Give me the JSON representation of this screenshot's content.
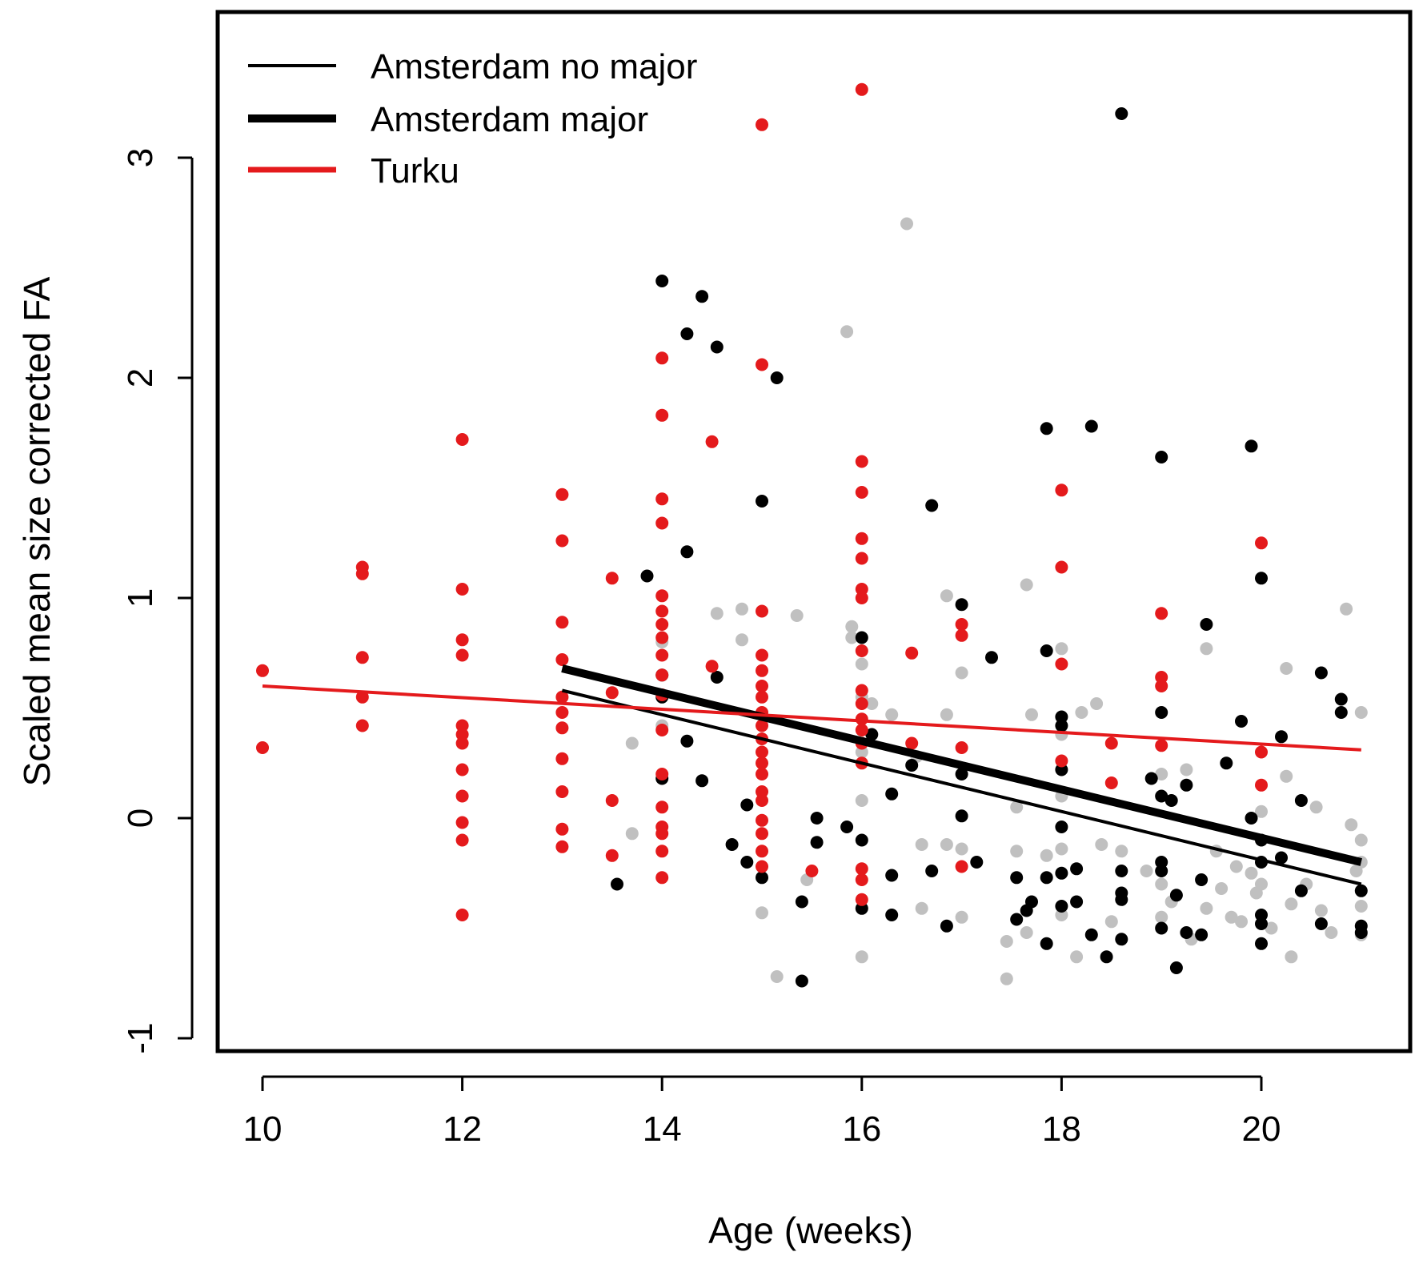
{
  "chart_data": {
    "type": "scatter",
    "title": "",
    "xlabel": "Age (weeks)",
    "ylabel": "Scaled mean size corrected FA",
    "xlim": [
      9.5,
      21.5
    ],
    "ylim": [
      -1.2,
      3.7
    ],
    "x_ticks": [
      "10",
      "12",
      "14",
      "16",
      "18",
      "20"
    ],
    "y_ticks": [
      "-1",
      "0",
      "1",
      "2",
      "3"
    ],
    "grid": false,
    "legend_position": "top-left",
    "legend": [
      {
        "label": "Amsterdam no major",
        "color": "#000000",
        "style": "thin"
      },
      {
        "label": "Amsterdam major",
        "color": "#000000",
        "style": "thick"
      },
      {
        "label": "Turku",
        "color": "#e41a1c",
        "style": "medium"
      }
    ],
    "colors": {
      "amsterdam": "#000000",
      "turku": "#e41a1c",
      "grey_points": "#c0c0c0"
    },
    "fit_lines": [
      {
        "legend_index": 0,
        "x": [
          13,
          21
        ],
        "y": [
          0.58,
          -0.3
        ]
      },
      {
        "legend_index": 1,
        "x": [
          13,
          21
        ],
        "y": [
          0.68,
          -0.2
        ]
      },
      {
        "legend_index": 2,
        "x": [
          10,
          21
        ],
        "y": [
          0.6,
          0.31
        ]
      }
    ],
    "series": [
      {
        "group": "turku",
        "points": [
          [
            10,
            0.67
          ],
          [
            10,
            0.32
          ],
          [
            11,
            1.14
          ],
          [
            11,
            1.11
          ],
          [
            11,
            0.73
          ],
          [
            11,
            0.55
          ],
          [
            11,
            0.42
          ],
          [
            12,
            1.72
          ],
          [
            12,
            1.04
          ],
          [
            12,
            0.81
          ],
          [
            12,
            0.74
          ],
          [
            12,
            0.42
          ],
          [
            12,
            0.38
          ],
          [
            12,
            0.34
          ],
          [
            12,
            0.22
          ],
          [
            12,
            0.1
          ],
          [
            12,
            -0.02
          ],
          [
            12,
            -0.1
          ],
          [
            12,
            -0.44
          ],
          [
            13,
            1.47
          ],
          [
            13,
            1.26
          ],
          [
            13,
            0.89
          ],
          [
            13,
            0.72
          ],
          [
            13,
            0.55
          ],
          [
            13,
            0.48
          ],
          [
            13,
            0.41
          ],
          [
            13,
            0.27
          ],
          [
            13,
            0.12
          ],
          [
            13,
            -0.05
          ],
          [
            13,
            -0.13
          ],
          [
            13.5,
            1.09
          ],
          [
            13.5,
            0.57
          ],
          [
            13.5,
            0.08
          ],
          [
            13.5,
            -0.17
          ],
          [
            14,
            2.09
          ],
          [
            14,
            1.83
          ],
          [
            14,
            1.45
          ],
          [
            14,
            1.34
          ],
          [
            14,
            1.01
          ],
          [
            14,
            0.94
          ],
          [
            14,
            0.88
          ],
          [
            14,
            0.82
          ],
          [
            14,
            0.74
          ],
          [
            14,
            0.65
          ],
          [
            14,
            0.56
          ],
          [
            14,
            0.4
          ],
          [
            14,
            0.2
          ],
          [
            14,
            0.05
          ],
          [
            14,
            -0.04
          ],
          [
            14,
            -0.07
          ],
          [
            14,
            -0.15
          ],
          [
            14,
            -0.27
          ],
          [
            14.5,
            1.71
          ],
          [
            14.5,
            0.69
          ],
          [
            15,
            3.15
          ],
          [
            15,
            2.06
          ],
          [
            15,
            0.94
          ],
          [
            15,
            0.74
          ],
          [
            15,
            0.67
          ],
          [
            15,
            0.6
          ],
          [
            15,
            0.55
          ],
          [
            15,
            0.48
          ],
          [
            15,
            0.42
          ],
          [
            15,
            0.36
          ],
          [
            15,
            0.3
          ],
          [
            15,
            0.25
          ],
          [
            15,
            0.2
          ],
          [
            15,
            0.12
          ],
          [
            15,
            0.08
          ],
          [
            15,
            -0.01
          ],
          [
            15,
            -0.07
          ],
          [
            15,
            -0.15
          ],
          [
            15,
            -0.22
          ],
          [
            15.5,
            -0.24
          ],
          [
            16,
            3.31
          ],
          [
            16,
            1.62
          ],
          [
            16,
            1.48
          ],
          [
            16,
            1.27
          ],
          [
            16,
            1.18
          ],
          [
            16,
            1.04
          ],
          [
            16,
            1.0
          ],
          [
            16,
            0.76
          ],
          [
            16,
            0.58
          ],
          [
            16,
            0.52
          ],
          [
            16,
            0.45
          ],
          [
            16,
            0.4
          ],
          [
            16,
            0.34
          ],
          [
            16,
            0.25
          ],
          [
            16,
            -0.23
          ],
          [
            16,
            -0.28
          ],
          [
            16,
            -0.37
          ],
          [
            16.5,
            0.75
          ],
          [
            16.5,
            0.34
          ],
          [
            17,
            0.88
          ],
          [
            17,
            0.83
          ],
          [
            17,
            0.32
          ],
          [
            17,
            -0.22
          ],
          [
            18,
            1.49
          ],
          [
            18,
            1.14
          ],
          [
            18,
            0.7
          ],
          [
            18,
            0.26
          ],
          [
            18.5,
            0.34
          ],
          [
            18.5,
            0.16
          ],
          [
            19,
            0.93
          ],
          [
            19,
            0.64
          ],
          [
            19,
            0.6
          ],
          [
            19,
            0.33
          ],
          [
            20,
            1.25
          ],
          [
            20,
            0.3
          ],
          [
            20,
            0.15
          ]
        ]
      },
      {
        "group": "amsterdam",
        "points": [
          [
            13.55,
            -0.3
          ],
          [
            13.85,
            1.1
          ],
          [
            14,
            2.44
          ],
          [
            14,
            0.65
          ],
          [
            14,
            0.55
          ],
          [
            14,
            0.18
          ],
          [
            14.25,
            2.2
          ],
          [
            14.25,
            1.21
          ],
          [
            14.25,
            0.35
          ],
          [
            14.4,
            2.37
          ],
          [
            14.4,
            0.17
          ],
          [
            14.55,
            2.14
          ],
          [
            14.55,
            0.64
          ],
          [
            14.7,
            -0.12
          ],
          [
            14.85,
            0.06
          ],
          [
            14.85,
            -0.2
          ],
          [
            15,
            1.44
          ],
          [
            15,
            -0.27
          ],
          [
            15.15,
            2.0
          ],
          [
            15.4,
            -0.38
          ],
          [
            15.4,
            -0.74
          ],
          [
            15.55,
            -0.11
          ],
          [
            15.55,
            0.0
          ],
          [
            15.85,
            -0.04
          ],
          [
            16,
            0.82
          ],
          [
            16,
            -0.1
          ],
          [
            16,
            -0.41
          ],
          [
            16.1,
            0.38
          ],
          [
            16.3,
            0.11
          ],
          [
            16.3,
            -0.26
          ],
          [
            16.3,
            -0.44
          ],
          [
            16.5,
            0.24
          ],
          [
            16.7,
            1.42
          ],
          [
            16.7,
            -0.24
          ],
          [
            16.85,
            -0.49
          ],
          [
            17,
            0.97
          ],
          [
            17,
            0.2
          ],
          [
            17,
            0.01
          ],
          [
            17.15,
            -0.2
          ],
          [
            17.3,
            0.73
          ],
          [
            17.55,
            -0.27
          ],
          [
            17.55,
            -0.46
          ],
          [
            17.65,
            -0.42
          ],
          [
            17.7,
            -0.38
          ],
          [
            17.85,
            1.77
          ],
          [
            17.85,
            0.76
          ],
          [
            17.85,
            -0.27
          ],
          [
            17.85,
            -0.57
          ],
          [
            18,
            0.46
          ],
          [
            18,
            0.42
          ],
          [
            18,
            0.22
          ],
          [
            18,
            -0.04
          ],
          [
            18,
            -0.25
          ],
          [
            18,
            -0.4
          ],
          [
            18.15,
            -0.23
          ],
          [
            18.15,
            -0.38
          ],
          [
            18.3,
            1.78
          ],
          [
            18.3,
            -0.53
          ],
          [
            18.45,
            -0.63
          ],
          [
            18.6,
            3.2
          ],
          [
            18.6,
            -0.24
          ],
          [
            18.6,
            -0.34
          ],
          [
            18.6,
            -0.37
          ],
          [
            18.6,
            -0.55
          ],
          [
            18.9,
            0.18
          ],
          [
            19,
            1.64
          ],
          [
            19,
            0.48
          ],
          [
            19,
            0.1
          ],
          [
            19,
            -0.2
          ],
          [
            19,
            -0.24
          ],
          [
            19,
            -0.5
          ],
          [
            19.1,
            0.08
          ],
          [
            19.15,
            -0.35
          ],
          [
            19.15,
            -0.68
          ],
          [
            19.25,
            0.15
          ],
          [
            19.25,
            -0.52
          ],
          [
            19.4,
            -0.28
          ],
          [
            19.4,
            -0.53
          ],
          [
            19.45,
            0.88
          ],
          [
            19.65,
            0.25
          ],
          [
            19.8,
            0.44
          ],
          [
            19.9,
            1.69
          ],
          [
            19.9,
            0.0
          ],
          [
            20,
            1.09
          ],
          [
            20,
            -0.1
          ],
          [
            20,
            -0.2
          ],
          [
            20,
            -0.44
          ],
          [
            20,
            -0.48
          ],
          [
            20,
            -0.57
          ],
          [
            20.2,
            0.37
          ],
          [
            20.2,
            -0.18
          ],
          [
            20.4,
            0.08
          ],
          [
            20.4,
            -0.33
          ],
          [
            20.6,
            0.66
          ],
          [
            20.6,
            -0.48
          ],
          [
            20.8,
            0.54
          ],
          [
            20.8,
            0.48
          ],
          [
            21,
            -0.33
          ],
          [
            21,
            -0.49
          ],
          [
            21,
            -0.52
          ]
        ]
      },
      {
        "group": "grey",
        "points": [
          [
            13.7,
            0.34
          ],
          [
            13.7,
            -0.07
          ],
          [
            14,
            0.8
          ],
          [
            14,
            0.42
          ],
          [
            14.55,
            0.93
          ],
          [
            14.8,
            0.95
          ],
          [
            14.8,
            0.81
          ],
          [
            15,
            -0.43
          ],
          [
            15.15,
            -0.72
          ],
          [
            15.35,
            0.92
          ],
          [
            15.45,
            -0.28
          ],
          [
            15.85,
            2.21
          ],
          [
            15.9,
            0.87
          ],
          [
            15.9,
            0.82
          ],
          [
            16,
            0.7
          ],
          [
            16,
            0.55
          ],
          [
            16,
            0.3
          ],
          [
            16,
            0.08
          ],
          [
            16,
            -0.63
          ],
          [
            16.1,
            0.52
          ],
          [
            16.3,
            0.47
          ],
          [
            16.45,
            2.7
          ],
          [
            16.55,
            0.28
          ],
          [
            16.6,
            -0.12
          ],
          [
            16.6,
            -0.41
          ],
          [
            16.85,
            1.01
          ],
          [
            16.85,
            0.47
          ],
          [
            16.85,
            -0.12
          ],
          [
            17,
            0.66
          ],
          [
            17,
            -0.14
          ],
          [
            17,
            -0.45
          ],
          [
            17.45,
            -0.56
          ],
          [
            17.45,
            -0.73
          ],
          [
            17.55,
            0.05
          ],
          [
            17.55,
            -0.15
          ],
          [
            17.65,
            1.06
          ],
          [
            17.65,
            -0.52
          ],
          [
            17.7,
            0.47
          ],
          [
            17.85,
            -0.17
          ],
          [
            18,
            0.77
          ],
          [
            18,
            0.38
          ],
          [
            18,
            0.1
          ],
          [
            18,
            -0.14
          ],
          [
            18,
            -0.44
          ],
          [
            18.15,
            -0.63
          ],
          [
            18.2,
            0.48
          ],
          [
            18.35,
            0.52
          ],
          [
            18.4,
            -0.12
          ],
          [
            18.5,
            -0.47
          ],
          [
            18.6,
            -0.15
          ],
          [
            18.85,
            -0.24
          ],
          [
            19,
            0.2
          ],
          [
            19,
            -0.3
          ],
          [
            19,
            -0.45
          ],
          [
            19.1,
            -0.38
          ],
          [
            19.25,
            0.22
          ],
          [
            19.3,
            -0.55
          ],
          [
            19.45,
            0.77
          ],
          [
            19.45,
            -0.41
          ],
          [
            19.55,
            -0.15
          ],
          [
            19.6,
            -0.32
          ],
          [
            19.7,
            -0.45
          ],
          [
            19.75,
            -0.22
          ],
          [
            19.8,
            -0.47
          ],
          [
            19.9,
            -0.25
          ],
          [
            19.95,
            -0.34
          ],
          [
            20,
            0.03
          ],
          [
            20,
            -0.3
          ],
          [
            20.1,
            -0.5
          ],
          [
            20.25,
            0.68
          ],
          [
            20.25,
            0.19
          ],
          [
            20.3,
            -0.39
          ],
          [
            20.3,
            -0.63
          ],
          [
            20.45,
            -0.3
          ],
          [
            20.55,
            0.05
          ],
          [
            20.6,
            -0.42
          ],
          [
            20.7,
            -0.52
          ],
          [
            20.85,
            0.95
          ],
          [
            20.9,
            -0.03
          ],
          [
            20.95,
            -0.24
          ],
          [
            21,
            0.48
          ],
          [
            21,
            -0.1
          ],
          [
            21,
            -0.2
          ],
          [
            21,
            -0.4
          ],
          [
            21,
            -0.53
          ]
        ]
      }
    ]
  }
}
